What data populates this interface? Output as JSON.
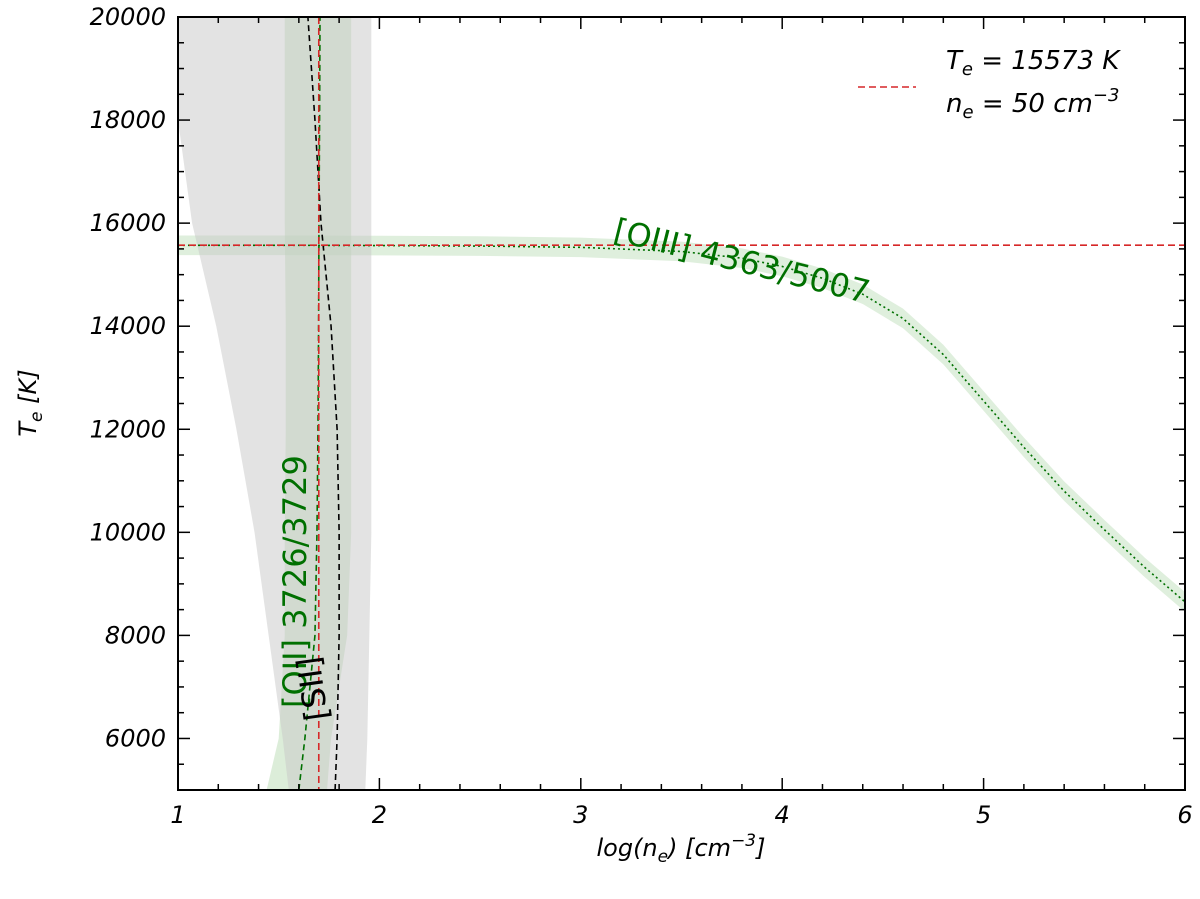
{
  "chart_data": {
    "type": "line",
    "title": "",
    "xlabel": {
      "main": "log(n",
      "sub": "e",
      "mid": ") [cm",
      "sup": "−3",
      "end": "]"
    },
    "ylabel": {
      "main": "T",
      "sub": "e",
      "end": " [K]"
    },
    "xlim": [
      1,
      6
    ],
    "ylim": [
      5000,
      20000
    ],
    "x_ticks": [
      1,
      2,
      3,
      4,
      5,
      6
    ],
    "y_ticks": [
      6000,
      8000,
      10000,
      12000,
      14000,
      16000,
      18000,
      20000
    ],
    "x_tick_labels": [
      "1",
      "2",
      "3",
      "4",
      "5",
      "6"
    ],
    "y_tick_labels": [
      "6000",
      "8000",
      "10000",
      "12000",
      "14000",
      "16000",
      "18000",
      "20000"
    ],
    "grid": false,
    "legend": {
      "position": "top-right",
      "line1": {
        "main": "T",
        "sub": "e",
        "rest": " = 15573 K"
      },
      "line2": {
        "main": "n",
        "sub": "e",
        "rest": " = 50 cm",
        "sup": "−3"
      },
      "color": "#d62728"
    },
    "solution": {
      "Te": 15573,
      "log_ne": 1.699
    },
    "series": [
      {
        "label": "[OIII] 4363/5007",
        "color": "#007000",
        "band_color": "#b9dcb4",
        "style": "dotted",
        "x": [
          1.0,
          1.5,
          2.0,
          2.5,
          3.0,
          3.5,
          3.8,
          4.0,
          4.2,
          4.4,
          4.6,
          4.8,
          5.0,
          5.2,
          5.4,
          5.6,
          5.8,
          6.0
        ],
        "y": [
          15570,
          15570,
          15565,
          15555,
          15530,
          15450,
          15320,
          15160,
          14930,
          14620,
          14150,
          13450,
          12550,
          11650,
          10800,
          10050,
          9320,
          8650
        ],
        "band_lo": [
          15380,
          15380,
          15375,
          15365,
          15340,
          15260,
          15130,
          14970,
          14740,
          14430,
          13960,
          13260,
          12360,
          11460,
          10610,
          9860,
          9130,
          8460
        ],
        "band_hi": [
          15760,
          15760,
          15755,
          15745,
          15720,
          15640,
          15510,
          15350,
          15120,
          14810,
          14340,
          13640,
          12740,
          11840,
          10990,
          10240,
          9510,
          8840
        ]
      },
      {
        "label": "[OII] 3726/3729",
        "color": "#007000",
        "band_color": "#b9dcb4",
        "style": "dashed",
        "y": [
          5000,
          6000,
          8000,
          10000,
          12000,
          14000,
          16000,
          18000,
          20000
        ],
        "x": [
          1.6,
          1.63,
          1.68,
          1.69,
          1.695,
          1.698,
          1.7,
          1.703,
          1.705
        ],
        "band_lo": [
          1.44,
          1.5,
          1.53,
          1.53,
          1.535,
          1.535,
          1.53,
          1.53,
          1.53
        ],
        "band_hi": [
          1.74,
          1.76,
          1.84,
          1.86,
          1.86,
          1.86,
          1.86,
          1.86,
          1.86
        ]
      },
      {
        "label": "[SII]",
        "color": "#000000",
        "band_color": "#c8c8c8",
        "style": "dashed",
        "y": [
          5000,
          6000,
          8000,
          10000,
          12000,
          14000,
          16000,
          18000,
          20000
        ],
        "x": [
          1.78,
          1.79,
          1.8,
          1.8,
          1.79,
          1.76,
          1.71,
          1.68,
          1.645
        ],
        "band_lo": [
          1.55,
          1.52,
          1.45,
          1.38,
          1.29,
          1.19,
          1.07,
          1.0,
          1.0
        ],
        "band_hi": [
          1.93,
          1.94,
          1.95,
          1.96,
          1.96,
          1.96,
          1.96,
          1.96,
          1.96
        ]
      }
    ]
  }
}
